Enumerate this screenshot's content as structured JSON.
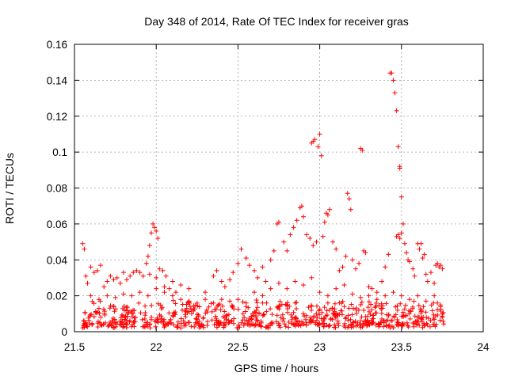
{
  "chart_data": {
    "type": "scatter",
    "title": "Day 348 of 2014, Rate Of TEC Index for receiver gras",
    "xlabel": "GPS time / hours",
    "ylabel": "ROTI / TECUs",
    "xlim": [
      21.5,
      24
    ],
    "ylim": [
      0,
      0.16
    ],
    "xticks": [
      21.5,
      22,
      22.5,
      23,
      23.5,
      24
    ],
    "xtick_labels": [
      "21.5",
      "22",
      "22.5",
      "23",
      "23.5",
      "24"
    ],
    "yticks": [
      0,
      0.02,
      0.04,
      0.06,
      0.08,
      0.1,
      0.12,
      0.14,
      0.16
    ],
    "ytick_labels": [
      "0",
      "0.02",
      "0.04",
      "0.06",
      "0.08",
      "0.1",
      "0.12",
      "0.14",
      "0.16"
    ],
    "grid": true,
    "marker": "+",
    "color": "#ff0000",
    "series": [
      {
        "name": "ROTI",
        "points": [
          [
            21.55,
            0.049
          ],
          [
            21.56,
            0.046
          ],
          [
            21.57,
            0.031
          ],
          [
            21.58,
            0.027
          ],
          [
            21.6,
            0.036
          ],
          [
            21.62,
            0.033
          ],
          [
            21.64,
            0.034
          ],
          [
            21.66,
            0.037
          ],
          [
            21.68,
            0.025
          ],
          [
            21.7,
            0.028
          ],
          [
            21.72,
            0.031
          ],
          [
            21.74,
            0.029
          ],
          [
            21.76,
            0.03
          ],
          [
            21.78,
            0.027
          ],
          [
            21.8,
            0.033
          ],
          [
            21.82,
            0.029
          ],
          [
            21.84,
            0.031
          ],
          [
            21.86,
            0.033
          ],
          [
            21.88,
            0.034
          ],
          [
            21.9,
            0.033
          ],
          [
            21.92,
            0.031
          ],
          [
            21.94,
            0.038
          ],
          [
            21.95,
            0.042
          ],
          [
            21.96,
            0.048
          ],
          [
            21.97,
            0.055
          ],
          [
            21.98,
            0.06
          ],
          [
            21.99,
            0.058
          ],
          [
            22.0,
            0.056
          ],
          [
            22.01,
            0.052
          ],
          [
            22.02,
            0.035
          ],
          [
            22.04,
            0.034
          ],
          [
            22.06,
            0.031
          ],
          [
            22.08,
            0.024
          ],
          [
            22.1,
            0.028
          ],
          [
            22.12,
            0.022
          ],
          [
            21.96,
            0.032
          ],
          [
            22.0,
            0.03
          ],
          [
            22.05,
            0.025
          ],
          [
            22.15,
            0.026
          ],
          [
            22.2,
            0.024
          ],
          [
            21.6,
            0.02
          ],
          [
            21.65,
            0.018
          ],
          [
            21.7,
            0.02
          ],
          [
            21.75,
            0.019
          ],
          [
            21.8,
            0.021
          ],
          [
            21.85,
            0.02
          ],
          [
            21.9,
            0.022
          ],
          [
            21.95,
            0.02
          ],
          [
            22.0,
            0.024
          ],
          [
            22.05,
            0.022
          ],
          [
            22.1,
            0.02
          ],
          [
            22.15,
            0.018
          ],
          [
            22.2,
            0.017
          ],
          [
            22.25,
            0.016
          ],
          [
            22.3,
            0.018
          ],
          [
            22.35,
            0.016
          ],
          [
            22.4,
            0.018
          ],
          [
            22.45,
            0.017
          ],
          [
            22.5,
            0.018
          ],
          [
            22.55,
            0.016
          ],
          [
            22.3,
            0.022
          ],
          [
            22.35,
            0.031
          ],
          [
            22.37,
            0.034
          ],
          [
            22.4,
            0.028
          ],
          [
            22.42,
            0.025
          ],
          [
            22.45,
            0.029
          ],
          [
            22.47,
            0.033
          ],
          [
            22.5,
            0.038
          ],
          [
            22.52,
            0.046
          ],
          [
            22.55,
            0.041
          ],
          [
            22.57,
            0.037
          ],
          [
            22.6,
            0.034
          ],
          [
            22.62,
            0.03
          ],
          [
            22.65,
            0.036
          ],
          [
            22.67,
            0.028
          ],
          [
            22.7,
            0.04
          ],
          [
            22.72,
            0.045
          ],
          [
            22.74,
            0.06
          ],
          [
            22.75,
            0.061
          ],
          [
            22.78,
            0.05
          ],
          [
            22.8,
            0.045
          ],
          [
            22.82,
            0.054
          ],
          [
            22.84,
            0.058
          ],
          [
            22.86,
            0.062
          ],
          [
            22.88,
            0.069
          ],
          [
            22.89,
            0.07
          ],
          [
            22.9,
            0.064
          ],
          [
            22.92,
            0.054
          ],
          [
            22.94,
            0.052
          ],
          [
            22.96,
            0.048
          ],
          [
            22.98,
            0.05
          ],
          [
            22.95,
            0.105
          ],
          [
            22.96,
            0.106
          ],
          [
            22.97,
            0.107
          ],
          [
            22.99,
            0.103
          ],
          [
            23.0,
            0.11
          ],
          [
            23.01,
            0.098
          ],
          [
            23.02,
            0.053
          ],
          [
            23.03,
            0.061
          ],
          [
            23.04,
            0.066
          ],
          [
            23.05,
            0.065
          ],
          [
            23.06,
            0.068
          ],
          [
            23.08,
            0.05
          ],
          [
            23.1,
            0.046
          ],
          [
            23.12,
            0.034
          ],
          [
            23.14,
            0.036
          ],
          [
            23.16,
            0.042
          ],
          [
            23.17,
            0.077
          ],
          [
            23.18,
            0.074
          ],
          [
            23.19,
            0.068
          ],
          [
            23.2,
            0.04
          ],
          [
            23.22,
            0.035
          ],
          [
            23.24,
            0.038
          ],
          [
            23.25,
            0.102
          ],
          [
            23.26,
            0.101
          ],
          [
            23.27,
            0.045
          ],
          [
            23.28,
            0.044
          ],
          [
            23.3,
            0.025
          ],
          [
            23.32,
            0.024
          ],
          [
            23.35,
            0.022
          ],
          [
            23.38,
            0.028
          ],
          [
            23.4,
            0.036
          ],
          [
            23.42,
            0.043
          ],
          [
            23.43,
            0.144
          ],
          [
            23.44,
            0.144
          ],
          [
            23.45,
            0.14
          ],
          [
            23.46,
            0.133
          ],
          [
            23.47,
            0.123
          ],
          [
            23.48,
            0.103
          ],
          [
            23.49,
            0.092
          ],
          [
            23.49,
            0.091
          ],
          [
            23.5,
            0.075
          ],
          [
            23.51,
            0.06
          ],
          [
            23.47,
            0.053
          ],
          [
            23.48,
            0.054
          ],
          [
            23.49,
            0.052
          ],
          [
            23.5,
            0.055
          ],
          [
            23.52,
            0.049
          ],
          [
            23.53,
            0.044
          ],
          [
            23.54,
            0.04
          ],
          [
            23.55,
            0.039
          ],
          [
            23.57,
            0.035
          ],
          [
            23.58,
            0.031
          ],
          [
            23.6,
            0.049
          ],
          [
            23.61,
            0.046
          ],
          [
            23.62,
            0.049
          ],
          [
            23.63,
            0.041
          ],
          [
            23.64,
            0.043
          ],
          [
            23.65,
            0.032
          ],
          [
            23.66,
            0.028
          ],
          [
            23.68,
            0.033
          ],
          [
            23.7,
            0.027
          ],
          [
            23.71,
            0.037
          ],
          [
            23.72,
            0.038
          ],
          [
            23.73,
            0.036
          ],
          [
            23.74,
            0.037
          ],
          [
            23.75,
            0.035
          ],
          [
            23.7,
            0.02
          ],
          [
            23.72,
            0.016
          ],
          [
            23.74,
            0.014
          ],
          [
            22.6,
            0.022
          ],
          [
            22.65,
            0.02
          ],
          [
            22.7,
            0.024
          ],
          [
            22.75,
            0.027
          ],
          [
            22.8,
            0.024
          ],
          [
            22.85,
            0.028
          ],
          [
            22.9,
            0.026
          ],
          [
            22.95,
            0.03
          ],
          [
            23.0,
            0.022
          ],
          [
            23.05,
            0.02
          ],
          [
            23.1,
            0.024
          ],
          [
            23.15,
            0.026
          ],
          [
            23.2,
            0.021
          ],
          [
            23.25,
            0.019
          ],
          [
            23.3,
            0.02
          ],
          [
            23.35,
            0.018
          ],
          [
            23.4,
            0.02
          ],
          [
            23.45,
            0.022
          ],
          [
            23.5,
            0.02
          ],
          [
            23.55,
            0.018
          ],
          [
            23.6,
            0.02
          ],
          [
            23.65,
            0.017
          ],
          [
            22.55,
            0.014
          ],
          [
            22.65,
            0.016
          ],
          [
            22.75,
            0.014
          ],
          [
            22.85,
            0.016
          ],
          [
            22.95,
            0.014
          ],
          [
            23.05,
            0.016
          ],
          [
            23.15,
            0.014
          ],
          [
            23.25,
            0.015
          ]
        ],
        "band": {
          "x_from": 21.55,
          "x_to": 23.76,
          "y_min": 0.002,
          "y_max": 0.018,
          "count": 700
        }
      }
    ]
  }
}
